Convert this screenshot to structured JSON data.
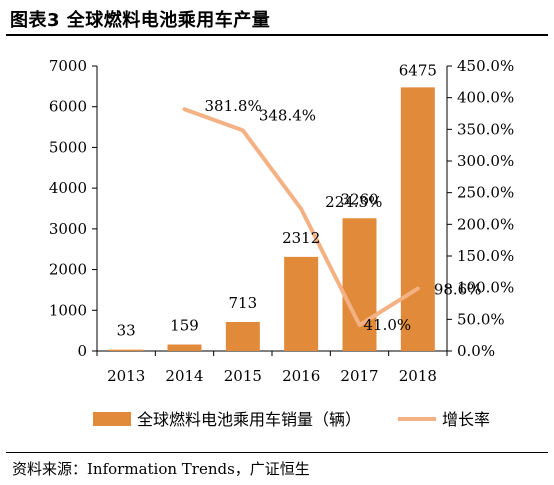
{
  "header": {
    "title": "图表3 全球燃料电池乘用车产量"
  },
  "footer": {
    "source": "资料来源：Information Trends，广证恒生"
  },
  "colors": {
    "bar": "#E08A3A",
    "line": "#F4B183"
  },
  "chart_data": {
    "type": "bar",
    "categories": [
      "2013",
      "2014",
      "2015",
      "2016",
      "2017",
      "2018"
    ],
    "series": [
      {
        "name": "全球燃料电池乘用车销量（辆）",
        "type": "bar",
        "axis": "left",
        "values": [
          33,
          159,
          713,
          2312,
          3260,
          6475
        ],
        "labels": [
          "33",
          "159",
          "713",
          "2312",
          "3260",
          "6475"
        ]
      },
      {
        "name": "增长率",
        "type": "line",
        "axis": "right",
        "values": [
          null,
          381.8,
          348.4,
          224.3,
          41.0,
          98.6
        ],
        "labels": [
          "",
          "381.8%",
          "348.4%",
          "224.3%",
          "41.0%",
          "98.6%"
        ]
      }
    ],
    "y_left": {
      "ylim": [
        0,
        7000
      ],
      "ticks": [
        0,
        1000,
        2000,
        3000,
        4000,
        5000,
        6000,
        7000
      ],
      "tick_labels": [
        "0",
        "1000",
        "2000",
        "3000",
        "4000",
        "5000",
        "6000",
        "7000"
      ]
    },
    "y_right": {
      "ylim": [
        0,
        450
      ],
      "ticks": [
        0,
        50,
        100,
        150,
        200,
        250,
        300,
        350,
        400,
        450
      ],
      "tick_labels": [
        "0.0%",
        "50.0%",
        "100.0%",
        "150.0%",
        "200.0%",
        "250.0%",
        "300.0%",
        "350.0%",
        "400.0%",
        "450.0%"
      ]
    },
    "grid": false,
    "legend_position": "bottom"
  }
}
